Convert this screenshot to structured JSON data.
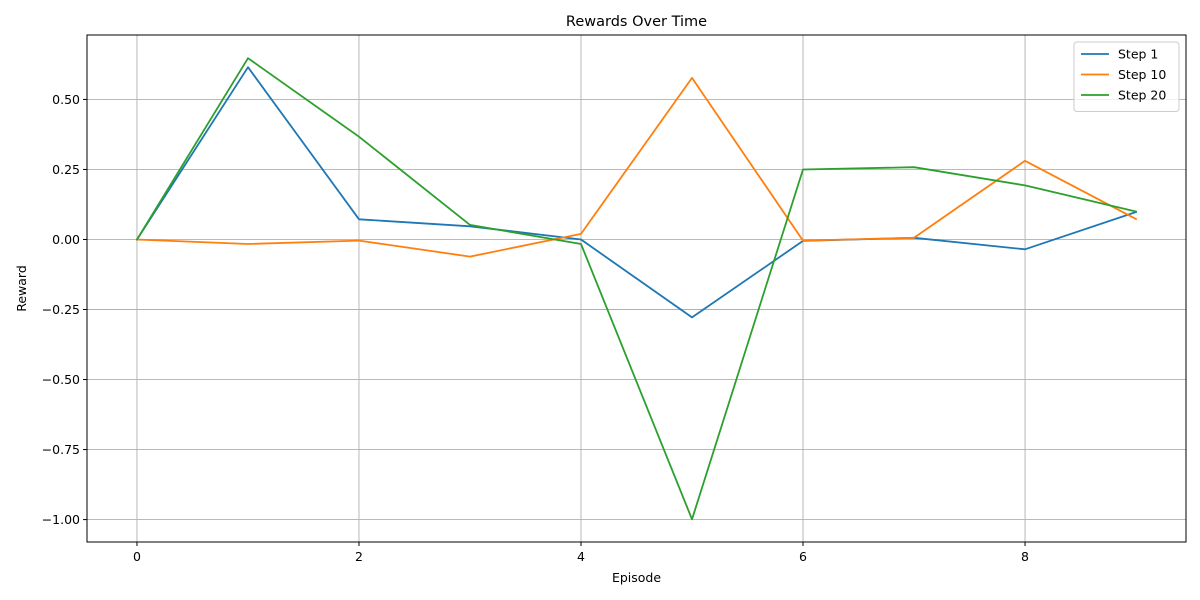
{
  "chart_data": {
    "type": "line",
    "title": "Rewards Over Time",
    "xlabel": "Episode",
    "ylabel": "Reward",
    "x": [
      0,
      1,
      2,
      3,
      4,
      5,
      6,
      7,
      8,
      9
    ],
    "xlim": [
      -0.45,
      9.45
    ],
    "ylim": [
      -1.08,
      0.73
    ],
    "xticks": [
      0,
      2,
      4,
      6,
      8
    ],
    "xtick_labels": [
      "0",
      "2",
      "4",
      "6",
      "8"
    ],
    "yticks": [
      -1.0,
      -0.75,
      -0.5,
      -0.25,
      0.0,
      0.25,
      0.5
    ],
    "ytick_labels": [
      "−1.00",
      "−0.75",
      "−0.50",
      "−0.25",
      "0.00",
      "0.25",
      "0.50"
    ],
    "grid": true,
    "legend_position": "top-right",
    "series": [
      {
        "name": "Step 1",
        "color": "#1f77b4",
        "values": [
          0.0,
          0.615,
          0.072,
          0.047,
          0.0,
          -0.278,
          -0.005,
          0.006,
          -0.035,
          0.098
        ]
      },
      {
        "name": "Step 10",
        "color": "#ff7f0e",
        "values": [
          0.0,
          -0.016,
          -0.004,
          -0.061,
          0.02,
          0.577,
          -0.004,
          0.006,
          0.281,
          0.073
        ]
      },
      {
        "name": "Step 20",
        "color": "#2ca02c",
        "values": [
          0.0,
          0.647,
          0.367,
          0.052,
          -0.016,
          -0.999,
          0.25,
          0.258,
          0.193,
          0.1
        ]
      }
    ]
  }
}
